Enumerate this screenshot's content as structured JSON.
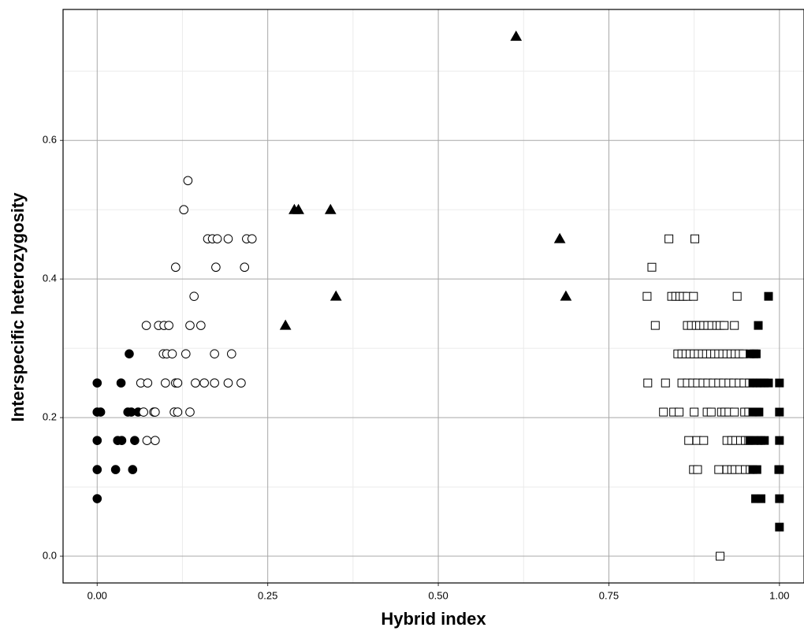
{
  "chart_data": {
    "type": "scatter",
    "xlabel": "Hybrid index",
    "ylabel": "Interspecific heterozygosity",
    "xlim": [
      -0.05,
      1.036
    ],
    "ylim": [
      -0.0386,
      0.789
    ],
    "xticks": [
      {
        "value": 0,
        "label": "0.00"
      },
      0.25,
      {
        "value": 0.5,
        "label": "0.50"
      },
      0.75,
      {
        "value": 1,
        "label": "1.00"
      }
    ],
    "yticks": [
      {
        "value": 0,
        "label": "0.0"
      },
      0.2,
      0.4,
      0.6
    ],
    "xminorticks": [
      0.125,
      0.375,
      0.625,
      0.875
    ],
    "yminorticks": [
      0.1,
      0.3,
      0.5,
      0.7
    ],
    "grid": true,
    "series": [
      {
        "marker": "circle",
        "filled": true,
        "color": "#000000",
        "x": [
          0,
          0,
          0.005,
          0,
          0,
          0,
          0.035,
          0.047,
          0.045,
          0.05,
          0.06,
          0.03,
          0.036,
          0.055,
          0.027,
          0.052
        ],
        "y": [
          0.25,
          0.208,
          0.208,
          0.167,
          0.125,
          0.083,
          0.25,
          0.292,
          0.208,
          0.208,
          0.208,
          0.167,
          0.167,
          0.167,
          0.125,
          0.125
        ]
      },
      {
        "marker": "circle",
        "filled": false,
        "color": "#000000",
        "x": [
          0.133,
          0.127,
          0.162,
          0.169,
          0.176,
          0.192,
          0.219,
          0.227,
          0.115,
          0.174,
          0.216,
          0.142,
          0.072,
          0.09,
          0.098,
          0.105,
          0.136,
          0.152,
          0.097,
          0.102,
          0.11,
          0.13,
          0.172,
          0.197,
          0.064,
          0.074,
          0.1,
          0.115,
          0.118,
          0.144,
          0.157,
          0.172,
          0.192,
          0.211,
          0.068,
          0.083,
          0.085,
          0.113,
          0.118,
          0.136,
          0.073,
          0.085
        ],
        "y": [
          0.542,
          0.5,
          0.458,
          0.458,
          0.458,
          0.458,
          0.458,
          0.458,
          0.417,
          0.417,
          0.417,
          0.375,
          0.333,
          0.333,
          0.333,
          0.333,
          0.333,
          0.333,
          0.292,
          0.292,
          0.292,
          0.292,
          0.292,
          0.292,
          0.25,
          0.25,
          0.25,
          0.25,
          0.25,
          0.25,
          0.25,
          0.25,
          0.25,
          0.25,
          0.208,
          0.208,
          0.208,
          0.208,
          0.208,
          0.208,
          0.167,
          0.167
        ]
      },
      {
        "marker": "triangle",
        "filled": true,
        "color": "#000000",
        "x": [
          0.614,
          0.289,
          0.295,
          0.342,
          0.35,
          0.276,
          0.678,
          0.687
        ],
        "y": [
          0.75,
          0.5,
          0.5,
          0.5,
          0.375,
          0.333,
          0.458,
          0.375
        ]
      },
      {
        "marker": "square",
        "filled": false,
        "color": "#000000",
        "x": [
          0.838,
          0.876,
          0.813,
          0.806,
          0.842,
          0.848,
          0.854,
          0.859,
          0.865,
          0.874,
          0.938,
          0.818,
          0.865,
          0.871,
          0.878,
          0.883,
          0.889,
          0.895,
          0.901,
          0.908,
          0.913,
          0.919,
          0.934,
          0.851,
          0.857,
          0.863,
          0.869,
          0.875,
          0.881,
          0.887,
          0.893,
          0.899,
          0.905,
          0.911,
          0.917,
          0.923,
          0.929,
          0.935,
          0.941,
          0.947,
          0.807,
          0.833,
          0.857,
          0.865,
          0.873,
          0.88,
          0.888,
          0.895,
          0.903,
          0.911,
          0.918,
          0.926,
          0.933,
          0.941,
          0.948,
          0.956,
          0.83,
          0.845,
          0.853,
          0.875,
          0.894,
          0.9,
          0.915,
          0.92,
          0.926,
          0.934,
          0.949,
          0.955,
          0.867,
          0.879,
          0.889,
          0.923,
          0.93,
          0.936,
          0.943,
          0.95,
          0.955,
          0.874,
          0.88,
          0.911,
          0.923,
          0.93,
          0.935,
          0.942,
          0.95,
          0.957,
          0.913
        ],
        "y": [
          0.458,
          0.458,
          0.417,
          0.375,
          0.375,
          0.375,
          0.375,
          0.375,
          0.375,
          0.375,
          0.375,
          0.333,
          0.333,
          0.333,
          0.333,
          0.333,
          0.333,
          0.333,
          0.333,
          0.333,
          0.333,
          0.333,
          0.333,
          0.292,
          0.292,
          0.292,
          0.292,
          0.292,
          0.292,
          0.292,
          0.292,
          0.292,
          0.292,
          0.292,
          0.292,
          0.292,
          0.292,
          0.292,
          0.292,
          0.292,
          0.25,
          0.25,
          0.25,
          0.25,
          0.25,
          0.25,
          0.25,
          0.25,
          0.25,
          0.25,
          0.25,
          0.25,
          0.25,
          0.25,
          0.25,
          0.25,
          0.208,
          0.208,
          0.208,
          0.208,
          0.208,
          0.208,
          0.208,
          0.208,
          0.208,
          0.208,
          0.208,
          0.208,
          0.167,
          0.167,
          0.167,
          0.167,
          0.167,
          0.167,
          0.167,
          0.167,
          0.167,
          0.125,
          0.125,
          0.125,
          0.125,
          0.125,
          0.125,
          0.125,
          0.125,
          0.125,
          0
        ]
      },
      {
        "marker": "square",
        "filled": true,
        "color": "#000000",
        "x": [
          0.984,
          0.969,
          0.957,
          0.963,
          0.966,
          0.961,
          0.967,
          0.972,
          0.978,
          0.984,
          1.0,
          0.961,
          0.967,
          0.97,
          1.0,
          0.957,
          0.963,
          0.969,
          0.973,
          0.978,
          1.0,
          0.961,
          0.967,
          0.999,
          1.0,
          0.965,
          0.973,
          1.0,
          1.0
        ],
        "y": [
          0.375,
          0.333,
          0.292,
          0.292,
          0.292,
          0.25,
          0.25,
          0.25,
          0.25,
          0.25,
          0.25,
          0.208,
          0.208,
          0.208,
          0.208,
          0.167,
          0.167,
          0.167,
          0.167,
          0.167,
          0.167,
          0.125,
          0.125,
          0.125,
          0.125,
          0.083,
          0.083,
          0.083,
          0.042
        ]
      }
    ]
  }
}
